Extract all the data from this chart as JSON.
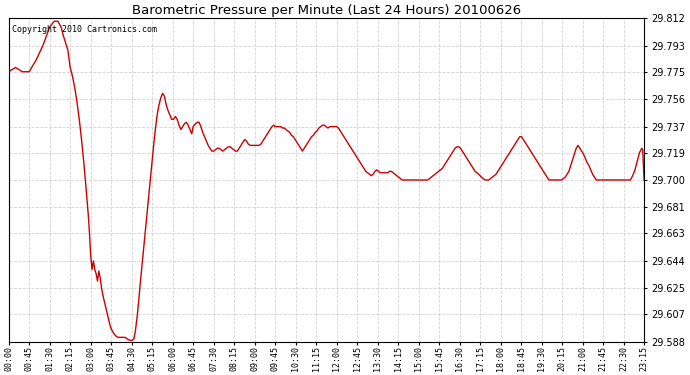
{
  "title": "Barometric Pressure per Minute (Last 24 Hours) 20100626",
  "copyright_text": "Copyright 2010 Cartronics.com",
  "line_color": "#cc0000",
  "background_color": "#ffffff",
  "grid_color": "#c8c8c8",
  "ylim": [
    29.588,
    29.812
  ],
  "yticks": [
    29.588,
    29.607,
    29.625,
    29.644,
    29.663,
    29.681,
    29.7,
    29.719,
    29.737,
    29.756,
    29.775,
    29.793,
    29.812
  ],
  "xtick_labels": [
    "00:00",
    "00:45",
    "01:30",
    "02:15",
    "03:00",
    "03:45",
    "04:30",
    "05:15",
    "06:00",
    "06:45",
    "07:30",
    "08:15",
    "09:00",
    "09:45",
    "10:30",
    "11:15",
    "12:00",
    "12:45",
    "13:30",
    "14:15",
    "15:00",
    "15:45",
    "16:30",
    "17:15",
    "18:00",
    "18:45",
    "19:30",
    "20:15",
    "21:00",
    "21:45",
    "22:30",
    "23:15"
  ],
  "x_values": [
    0,
    45,
    90,
    135,
    180,
    225,
    270,
    315,
    360,
    405,
    450,
    495,
    540,
    585,
    630,
    675,
    720,
    765,
    810,
    855,
    900,
    945,
    990,
    1035,
    1080,
    1125,
    1170,
    1215,
    1260,
    1305,
    1350,
    1395
  ],
  "pressure_data": [
    [
      0,
      29.775
    ],
    [
      15,
      29.778
    ],
    [
      30,
      29.775
    ],
    [
      45,
      29.775
    ],
    [
      60,
      29.783
    ],
    [
      75,
      29.793
    ],
    [
      90,
      29.806
    ],
    [
      100,
      29.81
    ],
    [
      108,
      29.81
    ],
    [
      115,
      29.806
    ],
    [
      120,
      29.8
    ],
    [
      125,
      29.795
    ],
    [
      130,
      29.79
    ],
    [
      135,
      29.778
    ],
    [
      140,
      29.772
    ],
    [
      145,
      29.764
    ],
    [
      150,
      29.754
    ],
    [
      155,
      29.742
    ],
    [
      160,
      29.728
    ],
    [
      165,
      29.712
    ],
    [
      170,
      29.694
    ],
    [
      175,
      29.675
    ],
    [
      178,
      29.66
    ],
    [
      180,
      29.648
    ],
    [
      183,
      29.638
    ],
    [
      186,
      29.644
    ],
    [
      189,
      29.638
    ],
    [
      192,
      29.635
    ],
    [
      195,
      29.63
    ],
    [
      198,
      29.637
    ],
    [
      201,
      29.632
    ],
    [
      204,
      29.625
    ],
    [
      207,
      29.62
    ],
    [
      210,
      29.616
    ],
    [
      213,
      29.612
    ],
    [
      216,
      29.608
    ],
    [
      219,
      29.604
    ],
    [
      222,
      29.6
    ],
    [
      225,
      29.597
    ],
    [
      230,
      29.594
    ],
    [
      235,
      29.592
    ],
    [
      240,
      29.591
    ],
    [
      245,
      29.591
    ],
    [
      250,
      29.591
    ],
    [
      255,
      29.591
    ],
    [
      260,
      29.59
    ],
    [
      265,
      29.589
    ],
    [
      268,
      29.589
    ],
    [
      270,
      29.589
    ],
    [
      272,
      29.589
    ],
    [
      275,
      29.59
    ],
    [
      278,
      29.595
    ],
    [
      282,
      29.605
    ],
    [
      286,
      29.618
    ],
    [
      290,
      29.632
    ],
    [
      294,
      29.645
    ],
    [
      298,
      29.658
    ],
    [
      302,
      29.671
    ],
    [
      306,
      29.684
    ],
    [
      310,
      29.697
    ],
    [
      314,
      29.71
    ],
    [
      318,
      29.723
    ],
    [
      322,
      29.735
    ],
    [
      326,
      29.745
    ],
    [
      330,
      29.752
    ],
    [
      334,
      29.757
    ],
    [
      338,
      29.76
    ],
    [
      342,
      29.758
    ],
    [
      346,
      29.752
    ],
    [
      350,
      29.748
    ],
    [
      354,
      29.745
    ],
    [
      358,
      29.742
    ],
    [
      362,
      29.742
    ],
    [
      366,
      29.744
    ],
    [
      370,
      29.742
    ],
    [
      374,
      29.738
    ],
    [
      378,
      29.735
    ],
    [
      382,
      29.737
    ],
    [
      386,
      29.739
    ],
    [
      390,
      29.74
    ],
    [
      394,
      29.738
    ],
    [
      398,
      29.735
    ],
    [
      402,
      29.732
    ],
    [
      405,
      29.737
    ],
    [
      410,
      29.739
    ],
    [
      414,
      29.74
    ],
    [
      418,
      29.74
    ],
    [
      422,
      29.737
    ],
    [
      426,
      29.733
    ],
    [
      430,
      29.73
    ],
    [
      434,
      29.727
    ],
    [
      438,
      29.724
    ],
    [
      442,
      29.722
    ],
    [
      446,
      29.72
    ],
    [
      450,
      29.72
    ],
    [
      454,
      29.721
    ],
    [
      458,
      29.722
    ],
    [
      462,
      29.722
    ],
    [
      466,
      29.721
    ],
    [
      470,
      29.72
    ],
    [
      474,
      29.721
    ],
    [
      478,
      29.722
    ],
    [
      482,
      29.723
    ],
    [
      486,
      29.723
    ],
    [
      490,
      29.722
    ],
    [
      494,
      29.721
    ],
    [
      498,
      29.72
    ],
    [
      502,
      29.72
    ],
    [
      506,
      29.722
    ],
    [
      510,
      29.724
    ],
    [
      514,
      29.726
    ],
    [
      518,
      29.728
    ],
    [
      522,
      29.727
    ],
    [
      526,
      29.725
    ],
    [
      530,
      29.724
    ],
    [
      534,
      29.724
    ],
    [
      538,
      29.724
    ],
    [
      542,
      29.724
    ],
    [
      546,
      29.724
    ],
    [
      550,
      29.724
    ],
    [
      554,
      29.725
    ],
    [
      558,
      29.727
    ],
    [
      562,
      29.729
    ],
    [
      566,
      29.731
    ],
    [
      570,
      29.733
    ],
    [
      574,
      29.735
    ],
    [
      578,
      29.737
    ],
    [
      582,
      29.738
    ],
    [
      585,
      29.737
    ],
    [
      589,
      29.737
    ],
    [
      593,
      29.737
    ],
    [
      597,
      29.737
    ],
    [
      601,
      29.736
    ],
    [
      605,
      29.736
    ],
    [
      609,
      29.735
    ],
    [
      613,
      29.734
    ],
    [
      617,
      29.733
    ],
    [
      621,
      29.731
    ],
    [
      625,
      29.73
    ],
    [
      629,
      29.728
    ],
    [
      633,
      29.726
    ],
    [
      637,
      29.724
    ],
    [
      641,
      29.722
    ],
    [
      645,
      29.72
    ],
    [
      649,
      29.722
    ],
    [
      653,
      29.724
    ],
    [
      657,
      29.726
    ],
    [
      661,
      29.728
    ],
    [
      665,
      29.73
    ],
    [
      669,
      29.731
    ],
    [
      673,
      29.733
    ],
    [
      677,
      29.734
    ],
    [
      681,
      29.736
    ],
    [
      685,
      29.737
    ],
    [
      689,
      29.738
    ],
    [
      693,
      29.738
    ],
    [
      697,
      29.737
    ],
    [
      701,
      29.736
    ],
    [
      705,
      29.737
    ],
    [
      709,
      29.737
    ],
    [
      713,
      29.737
    ],
    [
      717,
      29.737
    ],
    [
      720,
      29.737
    ],
    [
      724,
      29.736
    ],
    [
      728,
      29.734
    ],
    [
      732,
      29.732
    ],
    [
      736,
      29.73
    ],
    [
      740,
      29.728
    ],
    [
      744,
      29.726
    ],
    [
      748,
      29.724
    ],
    [
      752,
      29.722
    ],
    [
      756,
      29.72
    ],
    [
      760,
      29.718
    ],
    [
      764,
      29.716
    ],
    [
      768,
      29.714
    ],
    [
      772,
      29.712
    ],
    [
      776,
      29.71
    ],
    [
      780,
      29.708
    ],
    [
      784,
      29.706
    ],
    [
      788,
      29.705
    ],
    [
      792,
      29.704
    ],
    [
      796,
      29.703
    ],
    [
      800,
      29.704
    ],
    [
      804,
      29.706
    ],
    [
      808,
      29.707
    ],
    [
      812,
      29.706
    ],
    [
      816,
      29.705
    ],
    [
      820,
      29.705
    ],
    [
      824,
      29.705
    ],
    [
      828,
      29.705
    ],
    [
      832,
      29.705
    ],
    [
      836,
      29.706
    ],
    [
      840,
      29.706
    ],
    [
      844,
      29.705
    ],
    [
      848,
      29.704
    ],
    [
      852,
      29.703
    ],
    [
      856,
      29.702
    ],
    [
      860,
      29.701
    ],
    [
      864,
      29.7
    ],
    [
      868,
      29.7
    ],
    [
      872,
      29.7
    ],
    [
      876,
      29.7
    ],
    [
      880,
      29.7
    ],
    [
      884,
      29.7
    ],
    [
      888,
      29.7
    ],
    [
      892,
      29.7
    ],
    [
      896,
      29.7
    ],
    [
      900,
      29.7
    ],
    [
      904,
      29.7
    ],
    [
      908,
      29.7
    ],
    [
      912,
      29.7
    ],
    [
      916,
      29.7
    ],
    [
      920,
      29.7
    ],
    [
      924,
      29.701
    ],
    [
      928,
      29.702
    ],
    [
      932,
      29.703
    ],
    [
      936,
      29.704
    ],
    [
      940,
      29.705
    ],
    [
      944,
      29.706
    ],
    [
      948,
      29.707
    ],
    [
      952,
      29.708
    ],
    [
      956,
      29.71
    ],
    [
      960,
      29.712
    ],
    [
      964,
      29.714
    ],
    [
      968,
      29.716
    ],
    [
      972,
      29.718
    ],
    [
      976,
      29.72
    ],
    [
      980,
      29.722
    ],
    [
      984,
      29.723
    ],
    [
      988,
      29.723
    ],
    [
      992,
      29.722
    ],
    [
      996,
      29.72
    ],
    [
      1000,
      29.718
    ],
    [
      1004,
      29.716
    ],
    [
      1008,
      29.714
    ],
    [
      1012,
      29.712
    ],
    [
      1016,
      29.71
    ],
    [
      1020,
      29.708
    ],
    [
      1024,
      29.706
    ],
    [
      1028,
      29.705
    ],
    [
      1032,
      29.704
    ],
    [
      1035,
      29.703
    ],
    [
      1038,
      29.702
    ],
    [
      1042,
      29.701
    ],
    [
      1046,
      29.7
    ],
    [
      1050,
      29.7
    ],
    [
      1054,
      29.7
    ],
    [
      1058,
      29.701
    ],
    [
      1062,
      29.702
    ],
    [
      1066,
      29.703
    ],
    [
      1070,
      29.704
    ],
    [
      1074,
      29.706
    ],
    [
      1078,
      29.708
    ],
    [
      1082,
      29.71
    ],
    [
      1086,
      29.712
    ],
    [
      1090,
      29.714
    ],
    [
      1094,
      29.716
    ],
    [
      1098,
      29.718
    ],
    [
      1102,
      29.72
    ],
    [
      1106,
      29.722
    ],
    [
      1110,
      29.724
    ],
    [
      1114,
      29.726
    ],
    [
      1118,
      29.728
    ],
    [
      1122,
      29.73
    ],
    [
      1126,
      29.73
    ],
    [
      1130,
      29.728
    ],
    [
      1134,
      29.726
    ],
    [
      1138,
      29.724
    ],
    [
      1142,
      29.722
    ],
    [
      1146,
      29.72
    ],
    [
      1150,
      29.718
    ],
    [
      1154,
      29.716
    ],
    [
      1158,
      29.714
    ],
    [
      1162,
      29.712
    ],
    [
      1166,
      29.71
    ],
    [
      1170,
      29.708
    ],
    [
      1174,
      29.706
    ],
    [
      1178,
      29.704
    ],
    [
      1182,
      29.702
    ],
    [
      1186,
      29.7
    ],
    [
      1190,
      29.7
    ],
    [
      1194,
      29.7
    ],
    [
      1198,
      29.7
    ],
    [
      1202,
      29.7
    ],
    [
      1206,
      29.7
    ],
    [
      1210,
      29.7
    ],
    [
      1214,
      29.7
    ],
    [
      1218,
      29.701
    ],
    [
      1222,
      29.702
    ],
    [
      1226,
      29.704
    ],
    [
      1230,
      29.706
    ],
    [
      1234,
      29.71
    ],
    [
      1238,
      29.714
    ],
    [
      1242,
      29.718
    ],
    [
      1246,
      29.722
    ],
    [
      1250,
      29.724
    ],
    [
      1254,
      29.722
    ],
    [
      1258,
      29.72
    ],
    [
      1262,
      29.718
    ],
    [
      1266,
      29.715
    ],
    [
      1270,
      29.712
    ],
    [
      1274,
      29.71
    ],
    [
      1278,
      29.707
    ],
    [
      1282,
      29.704
    ],
    [
      1286,
      29.702
    ],
    [
      1290,
      29.7
    ],
    [
      1295,
      29.7
    ],
    [
      1300,
      29.7
    ],
    [
      1305,
      29.7
    ],
    [
      1310,
      29.7
    ],
    [
      1315,
      29.7
    ],
    [
      1320,
      29.7
    ],
    [
      1325,
      29.7
    ],
    [
      1330,
      29.7
    ],
    [
      1335,
      29.7
    ],
    [
      1340,
      29.7
    ],
    [
      1345,
      29.7
    ],
    [
      1350,
      29.7
    ],
    [
      1355,
      29.7
    ],
    [
      1360,
      29.7
    ],
    [
      1365,
      29.7
    ],
    [
      1370,
      29.703
    ],
    [
      1375,
      29.707
    ],
    [
      1380,
      29.713
    ],
    [
      1385,
      29.719
    ],
    [
      1390,
      29.722
    ],
    [
      1392,
      29.721
    ],
    [
      1395,
      29.7
    ]
  ]
}
